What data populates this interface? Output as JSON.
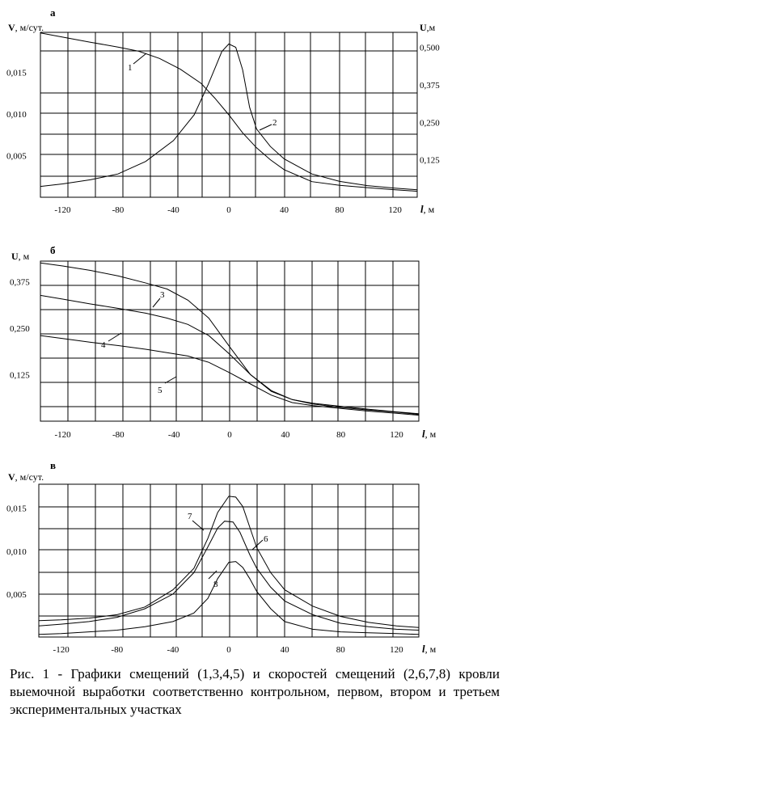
{
  "chart_data": [
    {
      "type": "line",
      "panel_label": "а",
      "ylabel_left": "V, м/сут.",
      "ylabel_right": "U,м",
      "xlabel": "l, м",
      "x_ticks": [
        "-120",
        "-80",
        "-40",
        "0",
        "40",
        "80",
        "120"
      ],
      "y_ticks_left": [
        "0,005",
        "0,010",
        "0,015"
      ],
      "y_ticks_right": [
        "0,125",
        "0,250",
        "0,375",
        "0,500"
      ],
      "xlim": [
        -136,
        136
      ],
      "ylim": [
        0,
        0.0198
      ],
      "y2lim": [
        0,
        0.55
      ],
      "grid": true,
      "series": [
        {
          "name": "1",
          "axis": "right",
          "x": [
            -136,
            -120,
            -100,
            -80,
            -65,
            -50,
            -35,
            -20,
            -10,
            0,
            10,
            20,
            30,
            40,
            60,
            80,
            100,
            120,
            136
          ],
          "values": [
            0.548,
            0.534,
            0.517,
            0.501,
            0.487,
            0.463,
            0.427,
            0.38,
            0.33,
            0.275,
            0.215,
            0.165,
            0.125,
            0.092,
            0.052,
            0.04,
            0.032,
            0.025,
            0.02
          ]
        },
        {
          "name": "2",
          "axis": "left",
          "x": [
            -136,
            -120,
            -100,
            -80,
            -60,
            -40,
            -25,
            -15,
            -10,
            -5,
            0,
            5,
            10,
            15,
            20,
            30,
            40,
            60,
            80,
            100,
            120,
            136
          ],
          "values": [
            0.0013,
            0.0016,
            0.0021,
            0.0028,
            0.0043,
            0.0068,
            0.0099,
            0.0135,
            0.0155,
            0.0175,
            0.0184,
            0.018,
            0.0153,
            0.0108,
            0.0082,
            0.0061,
            0.0046,
            0.0028,
            0.0019,
            0.0014,
            0.0011,
            0.0009
          ]
        }
      ],
      "annotations": [
        "1",
        "2"
      ]
    },
    {
      "type": "line",
      "panel_label": "б",
      "ylabel": "U, м",
      "xlabel": "l, м",
      "x_ticks": [
        "-120",
        "-80",
        "-40",
        "0",
        "40",
        "80",
        "120"
      ],
      "y_ticks": [
        "0,125",
        "0,250",
        "0,375"
      ],
      "xlim": [
        -136,
        136
      ],
      "ylim": [
        0,
        0.43
      ],
      "grid": true,
      "series": [
        {
          "name": "3",
          "x": [
            -136,
            -120,
            -100,
            -80,
            -60,
            -45,
            -30,
            -15,
            0,
            15,
            30,
            45,
            60,
            80,
            100,
            120,
            136
          ],
          "values": [
            0.425,
            0.417,
            0.405,
            0.39,
            0.371,
            0.355,
            0.325,
            0.277,
            0.2,
            0.125,
            0.08,
            0.058,
            0.048,
            0.04,
            0.032,
            0.025,
            0.02
          ]
        },
        {
          "name": "4",
          "x": [
            -136,
            -120,
            -100,
            -80,
            -60,
            -45,
            -30,
            -15,
            0,
            15,
            30,
            45,
            60,
            80,
            100,
            120,
            136
          ],
          "values": [
            0.338,
            0.328,
            0.315,
            0.303,
            0.29,
            0.277,
            0.26,
            0.23,
            0.18,
            0.125,
            0.082,
            0.058,
            0.046,
            0.037,
            0.03,
            0.024,
            0.018
          ]
        },
        {
          "name": "5",
          "x": [
            -136,
            -120,
            -100,
            -80,
            -60,
            -45,
            -30,
            -15,
            0,
            15,
            30,
            45,
            60,
            80,
            100,
            120,
            136
          ],
          "values": [
            0.23,
            0.222,
            0.212,
            0.203,
            0.193,
            0.184,
            0.175,
            0.158,
            0.13,
            0.1,
            0.07,
            0.05,
            0.042,
            0.034,
            0.027,
            0.021,
            0.016
          ]
        }
      ],
      "annotations": [
        "3",
        "4",
        "5"
      ]
    },
    {
      "type": "line",
      "panel_label": "в",
      "ylabel": "V, м/сут.",
      "xlabel": "l, м",
      "x_ticks": [
        "-120",
        "-80",
        "-40",
        "0",
        "40",
        "80",
        "120"
      ],
      "y_ticks": [
        "0,005",
        "0,010",
        "0,015"
      ],
      "xlim": [
        -136,
        136
      ],
      "ylim": [
        0,
        0.0178
      ],
      "grid": true,
      "series": [
        {
          "name": "6",
          "x": [
            -136,
            -120,
            -100,
            -80,
            -60,
            -40,
            -25,
            -15,
            -8,
            0,
            5,
            10,
            15,
            20,
            30,
            40,
            60,
            80,
            100,
            120,
            136
          ],
          "values": [
            0.0019,
            0.002,
            0.0022,
            0.0026,
            0.0035,
            0.0055,
            0.008,
            0.0115,
            0.0145,
            0.0164,
            0.0163,
            0.0152,
            0.0128,
            0.0104,
            0.0075,
            0.0055,
            0.0036,
            0.0024,
            0.0017,
            0.0013,
            0.0011
          ]
        },
        {
          "name": "7",
          "x": [
            -136,
            -120,
            -100,
            -80,
            -60,
            -40,
            -25,
            -15,
            -8,
            -3,
            3,
            8,
            15,
            20,
            30,
            40,
            60,
            80,
            100,
            120,
            136
          ],
          "values": [
            0.0013,
            0.0015,
            0.0018,
            0.0023,
            0.0033,
            0.005,
            0.0075,
            0.0105,
            0.0127,
            0.0135,
            0.0134,
            0.0122,
            0.0096,
            0.008,
            0.0058,
            0.0042,
            0.0026,
            0.0016,
            0.0012,
            0.0009,
            0.0008
          ]
        },
        {
          "name": "8",
          "x": [
            -136,
            -120,
            -100,
            -80,
            -60,
            -40,
            -25,
            -15,
            -8,
            0,
            5,
            10,
            15,
            20,
            30,
            40,
            60,
            80,
            100,
            120,
            136
          ],
          "values": [
            0.0003,
            0.0004,
            0.0006,
            0.0008,
            0.0012,
            0.0018,
            0.0028,
            0.0045,
            0.0068,
            0.0087,
            0.0088,
            0.0081,
            0.0068,
            0.0053,
            0.0033,
            0.0018,
            0.0009,
            0.0006,
            0.0005,
            0.0004,
            0.0003
          ]
        }
      ],
      "annotations": [
        "7",
        "6",
        "8"
      ]
    }
  ],
  "caption": "Рис. 1 - Графики смещений (1,3,4,5) и скоростей смещений (2,6,7,8) кровли выемочной выработки соответственно контрольном, первом, втором и третьем экспериментальных участках"
}
